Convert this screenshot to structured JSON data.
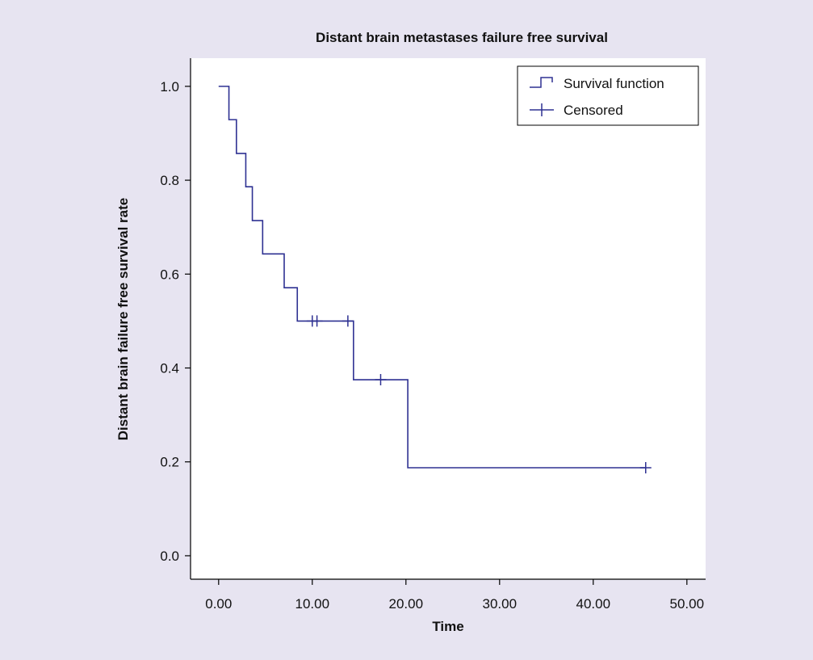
{
  "chart_data": {
    "type": "line",
    "subtype": "kaplan-meier-step",
    "title": "Distant brain metastases failure free survival",
    "xlabel": "Time",
    "ylabel": "Distant brain failure free survival rate",
    "xlim": [
      -3,
      52
    ],
    "ylim": [
      -0.05,
      1.06
    ],
    "xticks": [
      0,
      10,
      20,
      30,
      40,
      50
    ],
    "xtick_labels": [
      "0.00",
      "10.00",
      "20.00",
      "30.00",
      "40.00",
      "50.00"
    ],
    "yticks": [
      0.0,
      0.2,
      0.4,
      0.6,
      0.8,
      1.0
    ],
    "ytick_labels": [
      "0.0",
      "0.2",
      "0.4",
      "0.6",
      "0.8",
      "1.0"
    ],
    "grid": false,
    "legend_position": "top-right",
    "series": [
      {
        "name": "Survival function",
        "style": "step",
        "color": "#2e3192",
        "steps": [
          {
            "x": 0.0,
            "y": 1.0
          },
          {
            "x": 1.1,
            "y": 0.929
          },
          {
            "x": 1.9,
            "y": 0.857
          },
          {
            "x": 2.9,
            "y": 0.786
          },
          {
            "x": 3.6,
            "y": 0.714
          },
          {
            "x": 4.7,
            "y": 0.643
          },
          {
            "x": 7.0,
            "y": 0.571
          },
          {
            "x": 8.4,
            "y": 0.5
          },
          {
            "x": 14.4,
            "y": 0.375
          },
          {
            "x": 20.2,
            "y": 0.1875
          }
        ],
        "end_x": 45.6
      },
      {
        "name": "Censored",
        "style": "cross",
        "color": "#2e3192",
        "points": [
          {
            "x": 10.0,
            "y": 0.5
          },
          {
            "x": 10.5,
            "y": 0.5
          },
          {
            "x": 13.8,
            "y": 0.5
          },
          {
            "x": 17.3,
            "y": 0.375
          },
          {
            "x": 45.6,
            "y": 0.1875
          }
        ]
      }
    ]
  }
}
